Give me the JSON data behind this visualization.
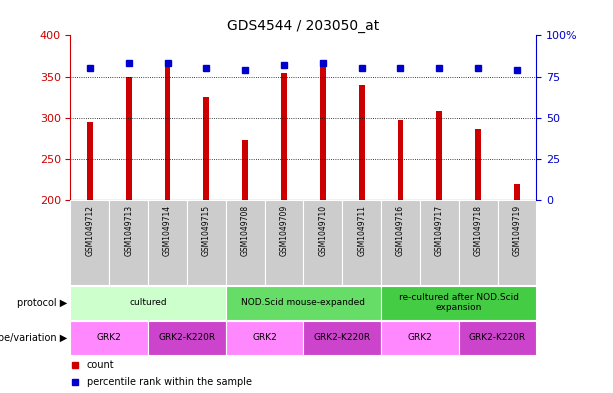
{
  "title": "GDS4544 / 203050_at",
  "samples": [
    "GSM1049712",
    "GSM1049713",
    "GSM1049714",
    "GSM1049715",
    "GSM1049708",
    "GSM1049709",
    "GSM1049710",
    "GSM1049711",
    "GSM1049716",
    "GSM1049717",
    "GSM1049718",
    "GSM1049719"
  ],
  "counts": [
    295,
    350,
    363,
    325,
    273,
    355,
    365,
    340,
    297,
    308,
    287,
    220
  ],
  "percentiles": [
    80,
    83,
    83,
    80,
    79,
    82,
    83,
    80,
    80,
    80,
    80,
    79
  ],
  "ymin": 200,
  "ymax": 400,
  "yticks": [
    200,
    250,
    300,
    350,
    400
  ],
  "right_yticks": [
    0,
    25,
    50,
    75,
    100
  ],
  "right_ytick_labels": [
    "0",
    "25",
    "50",
    "75",
    "100%"
  ],
  "bar_color": "#cc0000",
  "dot_color": "#0000cc",
  "protocol_row": [
    {
      "label": "cultured",
      "start": 0,
      "end": 4,
      "color": "#ccffcc"
    },
    {
      "label": "NOD.Scid mouse-expanded",
      "start": 4,
      "end": 8,
      "color": "#66dd66"
    },
    {
      "label": "re-cultured after NOD.Scid\nexpansion",
      "start": 8,
      "end": 12,
      "color": "#44cc44"
    }
  ],
  "genotype_row": [
    {
      "label": "GRK2",
      "start": 0,
      "end": 2,
      "color": "#ff88ff"
    },
    {
      "label": "GRK2-K220R",
      "start": 2,
      "end": 4,
      "color": "#cc44cc"
    },
    {
      "label": "GRK2",
      "start": 4,
      "end": 6,
      "color": "#ff88ff"
    },
    {
      "label": "GRK2-K220R",
      "start": 6,
      "end": 8,
      "color": "#cc44cc"
    },
    {
      "label": "GRK2",
      "start": 8,
      "end": 10,
      "color": "#ff88ff"
    },
    {
      "label": "GRK2-K220R",
      "start": 10,
      "end": 12,
      "color": "#cc44cc"
    }
  ],
  "legend_count_color": "#cc0000",
  "legend_pct_color": "#0000cc",
  "left_axis_color": "#cc0000",
  "right_axis_color": "#0000cc",
  "sample_bg_color": "#cccccc",
  "sample_border_color": "#aaaaaa"
}
